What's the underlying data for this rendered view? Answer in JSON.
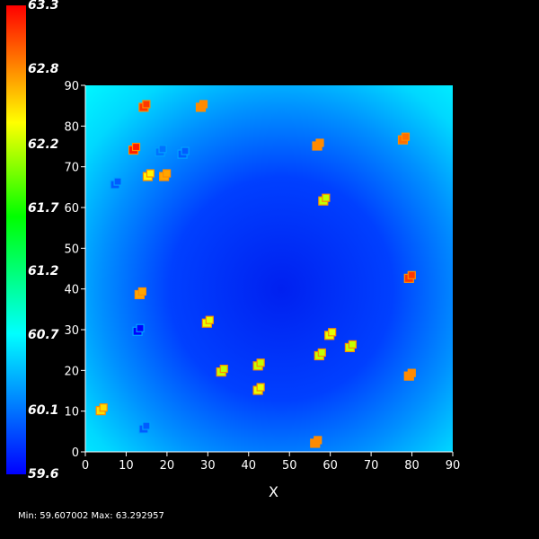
{
  "chart_data": {
    "type": "heatmap",
    "xlabel": "X",
    "ylabel": "",
    "xlim": [
      0,
      90
    ],
    "ylim": [
      0,
      90
    ],
    "xticks": [
      "0",
      "10",
      "20",
      "30",
      "40",
      "50",
      "60",
      "70",
      "80",
      "90"
    ],
    "yticks": [
      "0",
      "10",
      "20",
      "30",
      "40",
      "50",
      "60",
      "70",
      "80",
      "90"
    ],
    "colorbar": {
      "min": 59.6,
      "max": 63.3,
      "tick_labels": [
        "63.3",
        "62.8",
        "62.2",
        "61.7",
        "61.2",
        "60.7",
        "60.1",
        "59.6"
      ],
      "tick_values": [
        63.3,
        62.8,
        62.2,
        61.7,
        61.2,
        60.7,
        60.1,
        59.6
      ]
    },
    "field": {
      "description_values": "smooth field, low center near (48,40), high at edges",
      "center": [
        48,
        40
      ],
      "center_value": 59.8,
      "edge_value": 60.7
    },
    "patches": [
      {
        "x": 14.5,
        "y": 84.5,
        "value": 63.1
      },
      {
        "x": 28.5,
        "y": 84.5,
        "value": 62.8
      },
      {
        "x": 12,
        "y": 74,
        "value": 63.2
      },
      {
        "x": 18.5,
        "y": 73.5,
        "value": 60.1
      },
      {
        "x": 24,
        "y": 73,
        "value": 60.0
      },
      {
        "x": 15.5,
        "y": 67.5,
        "value": 62.4
      },
      {
        "x": 19.5,
        "y": 67.5,
        "value": 62.7
      },
      {
        "x": 7.5,
        "y": 65.5,
        "value": 60.0
      },
      {
        "x": 57,
        "y": 75,
        "value": 62.8
      },
      {
        "x": 78,
        "y": 76.5,
        "value": 62.9
      },
      {
        "x": 58.5,
        "y": 61.5,
        "value": 62.2
      },
      {
        "x": 79.5,
        "y": 42.5,
        "value": 63.1
      },
      {
        "x": 13.5,
        "y": 38.5,
        "value": 62.7
      },
      {
        "x": 30,
        "y": 31.5,
        "value": 62.3
      },
      {
        "x": 13,
        "y": 29.5,
        "value": 59.6
      },
      {
        "x": 60,
        "y": 28.5,
        "value": 62.3
      },
      {
        "x": 65,
        "y": 25.5,
        "value": 62.2
      },
      {
        "x": 57.5,
        "y": 23.5,
        "value": 62.2
      },
      {
        "x": 33.5,
        "y": 19.5,
        "value": 62.2
      },
      {
        "x": 42.5,
        "y": 21,
        "value": 62.2
      },
      {
        "x": 79.5,
        "y": 18.5,
        "value": 62.8
      },
      {
        "x": 42.5,
        "y": 15,
        "value": 62.3
      },
      {
        "x": 4,
        "y": 10,
        "value": 62.5
      },
      {
        "x": 14.5,
        "y": 5.5,
        "value": 60.0
      },
      {
        "x": 56.5,
        "y": 2,
        "value": 62.8
      }
    ]
  },
  "footer": {
    "minmax_text": "Min: 59.607002 Max: 63.292957"
  }
}
